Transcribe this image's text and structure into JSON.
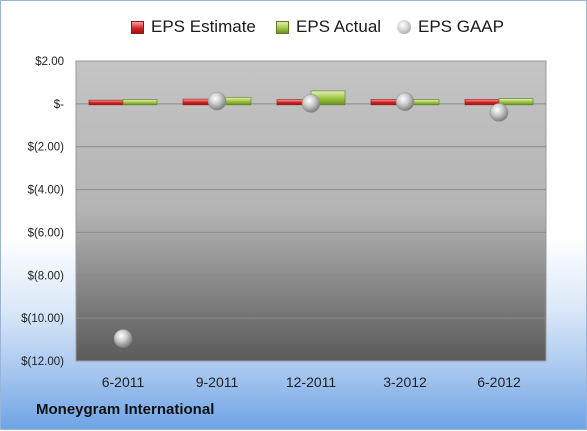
{
  "chart_data": {
    "type": "bar",
    "categories": [
      "6-2011",
      "9-2011",
      "12-2011",
      "3-2012",
      "6-2012"
    ],
    "series": [
      {
        "name": "EPS Estimate",
        "type": "bar",
        "values": [
          0.08,
          0.13,
          0.1,
          0.12,
          0.12
        ]
      },
      {
        "name": "EPS Actual",
        "type": "bar",
        "values": [
          0.1,
          0.21,
          0.51,
          0.1,
          0.15
        ]
      },
      {
        "name": "EPS GAAP",
        "type": "scatter",
        "values": [
          -10.95,
          0.13,
          0.02,
          0.1,
          -0.4
        ]
      }
    ],
    "ylim": [
      -12.0,
      2.0
    ],
    "yticks": [
      2,
      0,
      -2,
      -4,
      -6,
      -8,
      -10,
      -12
    ],
    "ytick_labels": [
      "$2.00",
      "$-",
      "$(2.00)",
      "$(4.00)",
      "$(6.00)",
      "$(8.00)",
      "$(10.00)",
      "$(12.00)"
    ],
    "grid": true,
    "legend_position": "top"
  },
  "legend": {
    "estimate": "EPS Estimate",
    "actual": "EPS Actual",
    "gaap": "EPS GAAP"
  },
  "footer": {
    "company": "Moneygram International"
  },
  "colors": {
    "estimate": "#d42020",
    "actual": "#9bc43b",
    "gaap": "#a0a0a0"
  }
}
